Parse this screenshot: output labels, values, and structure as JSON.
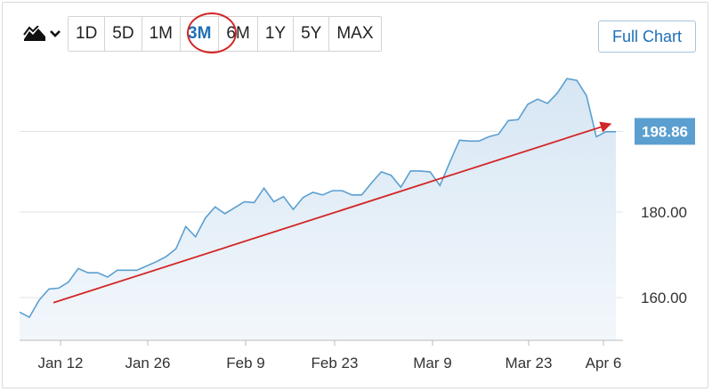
{
  "toolbar": {
    "chart_type_icon": "mountain-chart-icon",
    "dropdown_icon": "chevron-down-icon",
    "ranges": [
      "1D",
      "5D",
      "1M",
      "3M",
      "6M",
      "1Y",
      "5Y",
      "MAX"
    ],
    "active_range": "3M",
    "full_chart_label": "Full Chart"
  },
  "colors": {
    "line": "#5b9fd0",
    "area": "#e6f0f8",
    "accent": "#1f6fb5",
    "price_label_bg": "#5b9fd0",
    "trend_arrow": "#d32626",
    "highlight": "#d32626"
  },
  "chart_data": {
    "type": "area",
    "current_price_label": "198.86",
    "current_price": 198.86,
    "y_ticks": [
      160,
      180
    ],
    "y_tick_labels": [
      "160.00",
      "180.00"
    ],
    "x_tick_labels": [
      "Jan 12",
      "Jan 26",
      "Feb 9",
      "Feb 23",
      "Mar 9",
      "Mar 23",
      "Apr 6"
    ],
    "ylim": [
      150,
      210
    ],
    "grid": "horizontal",
    "values": [
      156.6,
      155.4,
      159.4,
      162,
      162.2,
      163.6,
      166.8,
      165.8,
      165.8,
      164.8,
      166.4,
      166.4,
      166.4,
      167.4,
      168.4,
      169.6,
      171.4,
      176.6,
      174.2,
      178.6,
      181.2,
      179.6,
      181,
      182.4,
      182.2,
      185.6,
      182.4,
      183.6,
      180.6,
      183.4,
      184.6,
      184,
      185,
      185,
      184,
      184,
      186.8,
      189.4,
      188.6,
      185.8,
      189.6,
      189.6,
      189.4,
      186.2,
      191.6,
      196.8,
      196.6,
      196.6,
      197.6,
      198.2,
      201.4,
      201.6,
      205.2,
      206.4,
      205.4,
      207.8,
      211.2,
      210.8,
      207.2,
      197.6,
      198.8,
      198.8
    ],
    "trend_line": {
      "start": 158.8,
      "end": 200.6
    }
  }
}
